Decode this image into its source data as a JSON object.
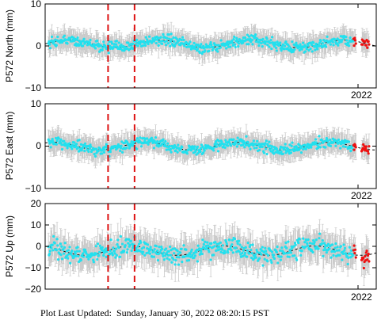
{
  "footer": {
    "label": "Plot Last Updated:",
    "timestamp": "Sunday, January 30, 2022 08:20:15 PST"
  },
  "colors": {
    "points": "#22e0ee",
    "recent_points": "#ee1111",
    "error_bars": "#c8c8c8",
    "model": "#000000",
    "events": "#dd1111"
  },
  "chart_data": [
    {
      "type": "scatter",
      "ylabel": "P572 North (mm)",
      "ylim": [
        -10,
        10
      ],
      "yticks": [
        "10",
        "0",
        "−10"
      ],
      "xlabel_tick": "2022",
      "grid": false,
      "events_x": [
        0.19,
        0.27
      ],
      "x_range": [
        0,
        1
      ],
      "model_baseline": 0.5,
      "error_bar": 2.5,
      "noise": 1.2
    },
    {
      "type": "scatter",
      "ylabel": "P572 East (mm)",
      "ylim": [
        -10,
        10
      ],
      "yticks": [
        "10",
        "0",
        "−10"
      ],
      "xlabel_tick": "2022",
      "grid": false,
      "events_x": [
        0.19,
        0.27
      ],
      "x_range": [
        0,
        1
      ],
      "model_baseline": 0.0,
      "error_bar": 2.5,
      "noise": 1.2
    },
    {
      "type": "scatter",
      "ylabel": "P572 Up (mm)",
      "ylim": [
        -20,
        20
      ],
      "yticks": [
        "20",
        "10",
        "0",
        "−10",
        "−20"
      ],
      "xlabel_tick": "2022",
      "grid": false,
      "events_x": [
        0.19,
        0.27
      ],
      "x_range": [
        0,
        1
      ],
      "model_baseline": -2.0,
      "error_bar": 7,
      "noise": 4
    }
  ]
}
